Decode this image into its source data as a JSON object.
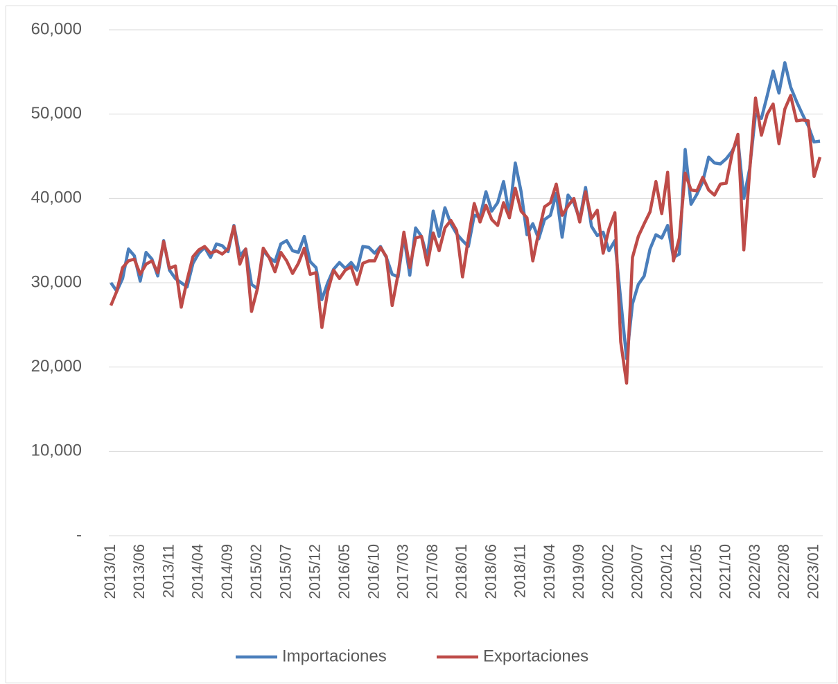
{
  "chart_data": {
    "type": "line",
    "categories": [
      "2013/01",
      null,
      null,
      null,
      null,
      "2013/06",
      null,
      null,
      null,
      null,
      "2013/11",
      null,
      null,
      null,
      null,
      "2014/04",
      null,
      null,
      null,
      null,
      "2014/09",
      null,
      null,
      null,
      null,
      "2015/02",
      null,
      null,
      null,
      null,
      "2015/07",
      null,
      null,
      null,
      null,
      "2015/12",
      null,
      null,
      null,
      null,
      "2016/05",
      null,
      null,
      null,
      null,
      "2016/10",
      null,
      null,
      null,
      null,
      "2017/03",
      null,
      null,
      null,
      null,
      "2017/08",
      null,
      null,
      null,
      null,
      "2018/01",
      null,
      null,
      null,
      null,
      "2018/06",
      null,
      null,
      null,
      null,
      "2018/11",
      null,
      null,
      null,
      null,
      "2019/04",
      null,
      null,
      null,
      null,
      "2019/09",
      null,
      null,
      null,
      null,
      "2020/02",
      null,
      null,
      null,
      null,
      "2020/07",
      null,
      null,
      null,
      null,
      "2020/12",
      null,
      null,
      null,
      null,
      "2021/05",
      null,
      null,
      null,
      null,
      "2021/10",
      null,
      null,
      null,
      null,
      "2022/03",
      null,
      null,
      null,
      null,
      "2022/08",
      null,
      null,
      null,
      null,
      "2023/01",
      null
    ],
    "series": [
      {
        "name": "Importaciones",
        "color": "#4a7ebb",
        "values": [
          30000,
          29000,
          30500,
          34000,
          33200,
          30200,
          33600,
          32800,
          30800,
          35000,
          31500,
          30500,
          30000,
          29500,
          32300,
          33500,
          34200,
          33000,
          34600,
          34400,
          33700,
          36800,
          33200,
          34000,
          29800,
          29300,
          33800,
          33000,
          32500,
          34600,
          35000,
          33800,
          33600,
          35500,
          32500,
          31800,
          28000,
          30000,
          31600,
          32400,
          31700,
          32400,
          31500,
          34300,
          34200,
          33500,
          34300,
          33000,
          31000,
          30700,
          35500,
          30900,
          36500,
          35500,
          33000,
          38500,
          35500,
          38900,
          37000,
          35800,
          35000,
          34300,
          38000,
          37800,
          40800,
          38500,
          39500,
          42000,
          38000,
          44200,
          40800,
          35700,
          37000,
          35200,
          37500,
          38000,
          40600,
          35400,
          40400,
          39500,
          37500,
          41300,
          36700,
          35600,
          36000,
          33800,
          35000,
          28000,
          21000,
          27500,
          29800,
          30800,
          34000,
          35700,
          35300,
          36800,
          33000,
          33400,
          45800,
          39300,
          40500,
          42000,
          44900,
          44200,
          44100,
          44700,
          45600,
          47000,
          40000,
          43500,
          50000,
          49500,
          52200,
          55100,
          52500,
          56100,
          53200,
          51500,
          50000,
          48600,
          46700,
          46800
        ]
      },
      {
        "name": "Exportaciones",
        "color": "#be4b48",
        "values": [
          27300,
          29000,
          31800,
          32600,
          32800,
          31000,
          32200,
          32600,
          31200,
          34900,
          31700,
          32000,
          27100,
          30300,
          33100,
          33900,
          34300,
          33500,
          33800,
          33400,
          34000,
          36700,
          32200,
          34000,
          26600,
          29300,
          34100,
          33000,
          31300,
          33600,
          32600,
          31100,
          32300,
          34100,
          31000,
          31200,
          24700,
          29000,
          31500,
          30500,
          31500,
          31900,
          29800,
          32300,
          32600,
          32600,
          34200,
          33100,
          27300,
          31000,
          36000,
          31800,
          35300,
          35500,
          32100,
          35900,
          33800,
          36500,
          37400,
          36200,
          30700,
          35300,
          39400,
          37200,
          39200,
          37500,
          36800,
          39500,
          37700,
          41200,
          38500,
          37700,
          32600,
          36000,
          39000,
          39500,
          41700,
          38000,
          39100,
          40000,
          37200,
          40800,
          37600,
          38600,
          33500,
          36400,
          38300,
          23000,
          18100,
          33000,
          35500,
          37000,
          38400,
          42000,
          38200,
          43100,
          32600,
          35300,
          43000,
          41000,
          40900,
          42500,
          41000,
          40400,
          41700,
          41800,
          45300,
          47600,
          33900,
          43200,
          51900,
          47500,
          50000,
          51200,
          46500,
          50600,
          52200,
          49200,
          49300,
          49200,
          42600,
          44900
        ]
      }
    ],
    "ylim": [
      0,
      60000
    ],
    "yticks": [
      {
        "value": 0,
        "label": "-"
      },
      {
        "value": 10000,
        "label": "10,000"
      },
      {
        "value": 20000,
        "label": "20,000"
      },
      {
        "value": 30000,
        "label": "30,000"
      },
      {
        "value": 40000,
        "label": "40,000"
      },
      {
        "value": 50000,
        "label": "50,000"
      },
      {
        "value": 60000,
        "label": "60,000"
      }
    ],
    "grid": true,
    "legend": "bottom"
  }
}
